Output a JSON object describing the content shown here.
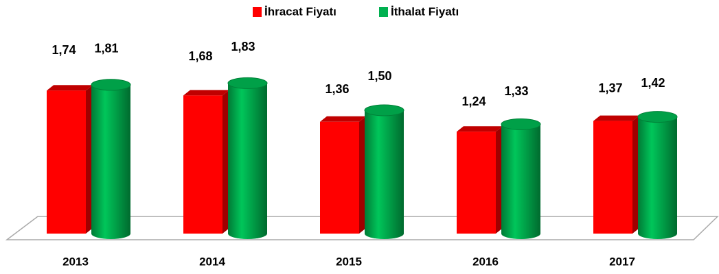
{
  "chart_data": {
    "type": "bar3d",
    "categories": [
      "2013",
      "2014",
      "2015",
      "2016",
      "2017"
    ],
    "series": [
      {
        "name": "İhracat Fiyatı",
        "color": "#ff0000",
        "values": [
          1.74,
          1.68,
          1.36,
          1.24,
          1.37
        ],
        "value_labels": [
          "1,74",
          "1,68",
          "1,36",
          "1,24",
          "1,37"
        ]
      },
      {
        "name": "İthalat Fiyatı",
        "color": "#00b050",
        "values": [
          1.81,
          1.83,
          1.5,
          1.33,
          1.42
        ],
        "value_labels": [
          "1,81",
          "1,83",
          "1,50",
          "1,33",
          "1,42"
        ]
      }
    ],
    "ylim": [
      0,
      2.5
    ],
    "legend": "top"
  }
}
